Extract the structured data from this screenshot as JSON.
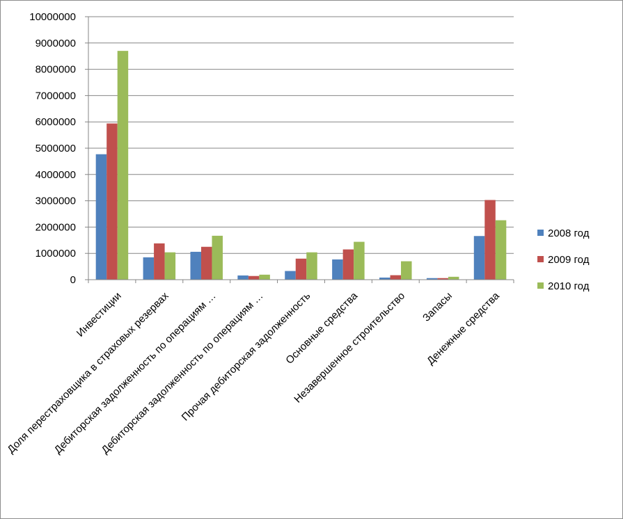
{
  "chart_data": {
    "type": "bar",
    "title": "",
    "xlabel": "",
    "ylabel": "",
    "ylim": [
      0,
      10000000
    ],
    "yticks": [
      0,
      1000000,
      2000000,
      3000000,
      4000000,
      5000000,
      6000000,
      7000000,
      8000000,
      9000000,
      10000000
    ],
    "ytick_labels": [
      "0",
      "1000000",
      "2000000",
      "3000000",
      "4000000",
      "5000000",
      "6000000",
      "7000000",
      "8000000",
      "9000000",
      "10000000"
    ],
    "grid": true,
    "legend_position": "right",
    "categories": [
      "Инвестиции",
      "Доля перестраховщика в страховых резервах",
      "Дебиторская задолженность по операциям …",
      "Дебиторская задолженность по операциям …",
      "Прочая дебиторская задолженность",
      "Основные средства",
      "Незавершенное строительство",
      "Запасы",
      "Денежные средства"
    ],
    "series": [
      {
        "name": "2008 год",
        "color": "#4f81bd",
        "values": [
          4770000,
          850000,
          1060000,
          160000,
          330000,
          770000,
          80000,
          60000,
          1660000
        ]
      },
      {
        "name": "2009 год",
        "color": "#c0504d",
        "values": [
          5940000,
          1380000,
          1250000,
          140000,
          800000,
          1150000,
          170000,
          60000,
          3030000
        ]
      },
      {
        "name": "2010 год",
        "color": "#9bbb59",
        "values": [
          8700000,
          1040000,
          1670000,
          190000,
          1040000,
          1440000,
          700000,
          110000,
          2260000
        ]
      }
    ]
  }
}
